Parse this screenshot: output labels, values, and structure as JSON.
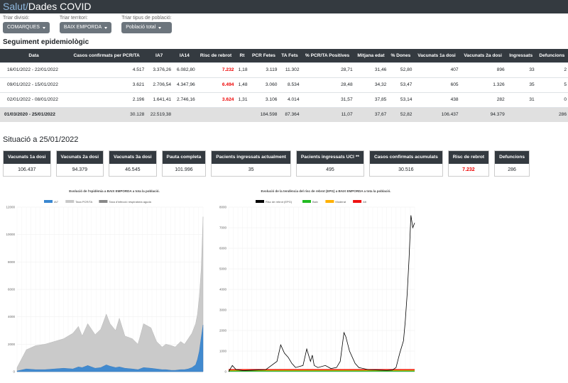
{
  "nav": {
    "brand_part1": "Salut/",
    "brand_part2": "Dades COVID"
  },
  "filters": [
    {
      "label": "Triar divisió:",
      "value": "COMARQUES"
    },
    {
      "label": "Triar territori:",
      "value": "BAIX EMPORDA"
    },
    {
      "label": "Triar tipus de població:",
      "value": "Població total"
    }
  ],
  "section1": "Seguiment epidemiològic",
  "table": {
    "headers": [
      "Data",
      "Casos confirmats per PCR/TA",
      "IA7",
      "IA14",
      "Risc de rebrot",
      "Rt",
      "PCR Fetes",
      "TA Fets",
      "% PCR/TA Positives",
      "Mitjana edat",
      "% Dones",
      "Vacunats 1a dosi",
      "Vacunats 2a dosi",
      "Ingressats",
      "Defuncions"
    ],
    "rows": [
      [
        "16/01/2022 - 22/01/2022",
        "4.517",
        "3.376,26",
        "6.082,80",
        "7.232",
        "1,18",
        "3.119",
        "11.302",
        "28,71",
        "31,46",
        "52,80",
        "407",
        "896",
        "33",
        "2"
      ],
      [
        "09/01/2022 - 15/01/2022",
        "3.621",
        "2.706,54",
        "4.347,96",
        "6.494",
        "1,48",
        "3.060",
        "8.534",
        "28,48",
        "34,32",
        "53,47",
        "605",
        "1.326",
        "35",
        "5"
      ],
      [
        "02/01/2022 - 08/01/2022",
        "2.196",
        "1.641,41",
        "2.746,16",
        "3.624",
        "1,31",
        "3.106",
        "4.014",
        "31,57",
        "37,85",
        "53,14",
        "438",
        "282",
        "31",
        "0"
      ]
    ],
    "total": [
      "01/03/2020 - 25/01/2022",
      "30.128",
      "22.519,38",
      "",
      "",
      "",
      "184.598",
      "87.364",
      "11,07",
      "37,67",
      "52,82",
      "106.437",
      "94.379",
      "",
      "286"
    ]
  },
  "section2": "Situació a 25/01/2022",
  "cards": [
    {
      "label": "Vacunats 1a dosi",
      "value": "106.437"
    },
    {
      "label": "Vacunats 2a dosi",
      "value": "94.379"
    },
    {
      "label": "Vacunats 3a dosi",
      "value": "46.545"
    },
    {
      "label": "Pauta completa",
      "value": "101.996"
    },
    {
      "label": "Pacients ingressats actualment",
      "value": "35"
    },
    {
      "label": "Pacients ingressats UCI **",
      "value": "495"
    },
    {
      "label": "Casos confirmats acumulats",
      "value": "30.516"
    },
    {
      "label": "Risc de rebrot",
      "value": "7.232",
      "highlight": true
    },
    {
      "label": "Defuncions",
      "value": "286"
    }
  ],
  "colors": {
    "dark": "#343a40",
    "alert": "#e00000",
    "ia7": "#3a87d0",
    "taxa": "#c8c8c8",
    "rebrot": "#000000",
    "baix": "#22bb22",
    "moderat": "#ffb000",
    "alt": "#ee1111"
  },
  "chart_data": [
    {
      "type": "area",
      "title": "Evolució de l'epidèmia a BAIX EMPORDA a tota la població.",
      "legend": [
        "IA7",
        "Taxa PCR/TA",
        "Taxa d'infecció respiratòria aguda"
      ],
      "ylim": [
        0,
        12000
      ],
      "yticks": [
        0,
        2000,
        4000,
        6000,
        8000,
        10000,
        12000
      ],
      "x": [
        0,
        0.05,
        0.1,
        0.15,
        0.2,
        0.25,
        0.3,
        0.33,
        0.35,
        0.38,
        0.42,
        0.45,
        0.48,
        0.5,
        0.53,
        0.55,
        0.58,
        0.62,
        0.65,
        0.68,
        0.72,
        0.75,
        0.78,
        0.8,
        0.83,
        0.85,
        0.88,
        0.9,
        0.92,
        0.94,
        0.96,
        0.97,
        0.98,
        0.99,
        1.0
      ],
      "series": [
        {
          "name": "Taxa PCR/TA",
          "values": [
            300,
            1600,
            1900,
            2000,
            2200,
            2400,
            2800,
            3300,
            2600,
            3500,
            2700,
            3100,
            4200,
            3500,
            3000,
            3900,
            2600,
            2400,
            2000,
            3500,
            3200,
            2200,
            1800,
            2000,
            1900,
            1800,
            2200,
            2000,
            2400,
            2800,
            3500,
            4200,
            5500,
            7500,
            11300
          ]
        },
        {
          "name": "IA7",
          "values": [
            50,
            200,
            150,
            150,
            200,
            250,
            200,
            350,
            300,
            450,
            250,
            300,
            500,
            400,
            300,
            350,
            250,
            200,
            150,
            300,
            250,
            200,
            150,
            150,
            100,
            100,
            150,
            150,
            200,
            300,
            500,
            900,
            1500,
            2500,
            3400
          ]
        }
      ]
    },
    {
      "type": "line",
      "title": "Evolució de la tendència del risc de rebrot (EPG) a BAIX EMPORDA a tota la població.",
      "legend": [
        "Risc de rebrot (EPG)",
        "Baix",
        "Moderat",
        "Alt"
      ],
      "ylim": [
        0,
        8000
      ],
      "yticks": [
        0,
        1000,
        2000,
        3000,
        4000,
        5000,
        6000,
        7000,
        8000
      ],
      "x": [
        0,
        0.02,
        0.04,
        0.08,
        0.15,
        0.2,
        0.26,
        0.28,
        0.3,
        0.32,
        0.34,
        0.36,
        0.4,
        0.42,
        0.44,
        0.45,
        0.46,
        0.48,
        0.52,
        0.55,
        0.58,
        0.6,
        0.62,
        0.63,
        0.65,
        0.68,
        0.7,
        0.75,
        0.8,
        0.85,
        0.88,
        0.9,
        0.92,
        0.94,
        0.95,
        0.96,
        0.97,
        0.98,
        0.99,
        1.0
      ],
      "series": [
        {
          "name": "Risc de rebrot (EPG)",
          "values": [
            0,
            300,
            100,
            50,
            80,
            100,
            500,
            1300,
            900,
            700,
            400,
            200,
            300,
            1100,
            500,
            800,
            300,
            200,
            300,
            150,
            200,
            500,
            1900,
            1700,
            1000,
            400,
            200,
            100,
            80,
            60,
            80,
            200,
            900,
            1500,
            2500,
            3800,
            5500,
            7600,
            7000,
            7232
          ]
        }
      ],
      "thresholds": [
        {
          "name": "Baix",
          "value": 30
        },
        {
          "name": "Moderat",
          "value": 70
        },
        {
          "name": "Alt",
          "value": 100
        }
      ]
    }
  ]
}
